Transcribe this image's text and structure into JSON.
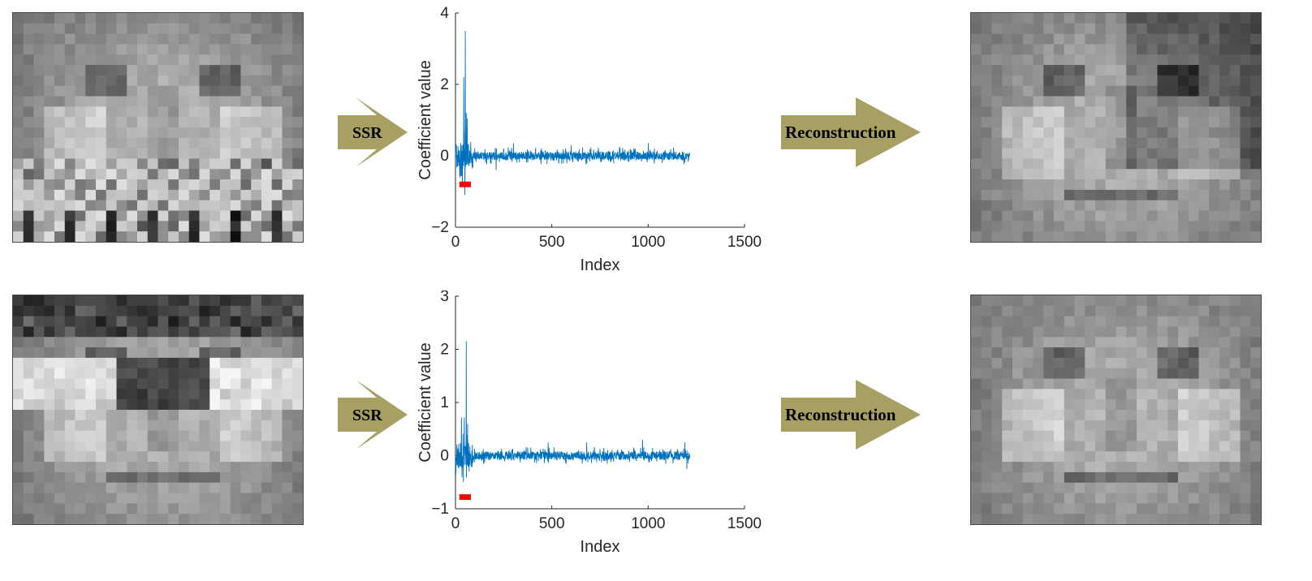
{
  "rows": [
    {
      "input_image": "occluded-face-scarf",
      "step1_label": "SSR",
      "step2_label": "Reconstruction",
      "output_image": "reconstructed-face",
      "chart_data": {
        "type": "line",
        "xlabel": "Index",
        "ylabel": "Coefficient value",
        "xlim": [
          0,
          1500
        ],
        "ylim": [
          -2,
          4
        ],
        "xticks": [
          "0",
          "500",
          "1000",
          "1500"
        ],
        "yticks": [
          "-2",
          "0",
          "2",
          "4"
        ],
        "n_points": 1216,
        "highlight_range": [
          20,
          80
        ],
        "highlight_y": -0.8,
        "series": [
          {
            "color": "#0072BD",
            "spikes": [
              [
                50,
                3.5
              ],
              [
                42,
                2.2
              ],
              [
                55,
                1.2
              ],
              [
                60,
                1.05
              ],
              [
                48,
                -1.1
              ],
              [
                35,
                -0.8
              ],
              [
                44,
                0.6
              ],
              [
                300,
                0.35
              ],
              [
                600,
                0.3
              ],
              [
                1000,
                0.35
              ],
              [
                850,
                0.25
              ],
              [
                210,
                -0.4
              ]
            ],
            "noise_amplitude": 0.12
          }
        ]
      }
    },
    {
      "input_image": "occluded-face-sunglasses",
      "step1_label": "SSR",
      "step2_label": "Reconstruction",
      "output_image": "reconstructed-face",
      "chart_data": {
        "type": "line",
        "xlabel": "Index",
        "ylabel": "Coefficient value",
        "xlim": [
          0,
          1500
        ],
        "ylim": [
          -1,
          3
        ],
        "xticks": [
          "0",
          "500",
          "1000",
          "1500"
        ],
        "yticks": [
          "-1",
          "0",
          "1",
          "2",
          "3"
        ],
        "n_points": 1216,
        "highlight_range": [
          20,
          80
        ],
        "highlight_y": -0.78,
        "series": [
          {
            "color": "#0072BD",
            "spikes": [
              [
                55,
                2.15
              ],
              [
                30,
                0.72
              ],
              [
                45,
                0.72
              ],
              [
                62,
                0.6
              ],
              [
                40,
                -0.5
              ],
              [
                70,
                -0.3
              ],
              [
                480,
                0.25
              ],
              [
                970,
                0.3
              ],
              [
                1190,
                0.25
              ],
              [
                1200,
                -0.25
              ],
              [
                680,
                0.25
              ]
            ],
            "noise_amplitude": 0.08
          }
        ]
      }
    }
  ]
}
